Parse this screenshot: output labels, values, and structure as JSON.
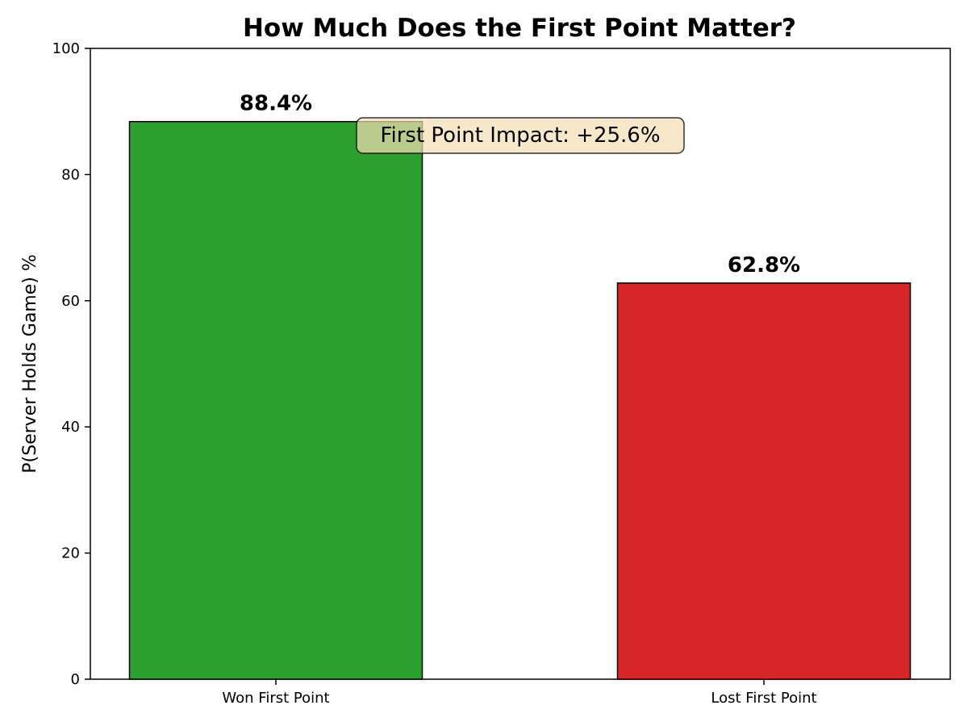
{
  "chart_data": {
    "type": "bar",
    "title": "How Much Does the First Point Matter?",
    "xlabel": "",
    "ylabel": "P(Server Holds Game) %",
    "ylim": [
      0,
      100
    ],
    "yticks": [
      0,
      20,
      40,
      60,
      80,
      100
    ],
    "categories": [
      "Won First Point",
      "Lost First Point"
    ],
    "values": [
      88.4,
      62.8
    ],
    "value_labels": [
      "88.4%",
      "62.8%"
    ],
    "colors": [
      "#2ca02c",
      "#d62728"
    ],
    "edge_color": "#000000",
    "grid": false,
    "annotation": {
      "text": "First Point Impact: +25.6%",
      "background": "#f5deb3"
    }
  }
}
